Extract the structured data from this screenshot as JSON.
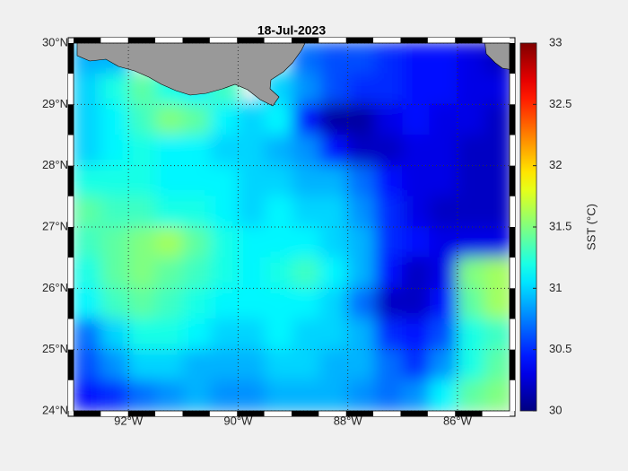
{
  "chart_data": {
    "type": "map",
    "title": "18-Jul-2023",
    "xlim": [
      -93,
      -85.05
    ],
    "ylim": [
      24,
      30
    ],
    "xticks": [
      {
        "value": -92,
        "label": "92°W"
      },
      {
        "value": -90,
        "label": "90°W"
      },
      {
        "value": -88,
        "label": "88°W"
      },
      {
        "value": -86,
        "label": "86°W"
      }
    ],
    "yticks": [
      {
        "value": 24,
        "label": "24°N"
      },
      {
        "value": 25,
        "label": "25°N"
      },
      {
        "value": 26,
        "label": "26°N"
      },
      {
        "value": 27,
        "label": "27°N"
      },
      {
        "value": 28,
        "label": "28°N"
      },
      {
        "value": 29,
        "label": "29°N"
      },
      {
        "value": 30,
        "label": "30°N"
      }
    ],
    "grid": true,
    "colormap": "jet",
    "land_color": "#999999",
    "colorbar": {
      "label": "SST (°C)",
      "clim": [
        30,
        33
      ],
      "ticks": [
        30,
        30.5,
        31,
        31.5,
        32,
        32.5,
        33
      ]
    },
    "x": [
      -92.75,
      -92.25,
      -91.75,
      -91.25,
      -90.75,
      -90.25,
      -89.75,
      -89.25,
      -88.75,
      -88.25,
      -87.75,
      -87.25,
      -86.75,
      -86.25,
      -85.75,
      -85.25
    ],
    "y": [
      29.75,
      29.25,
      28.75,
      28.25,
      27.75,
      27.25,
      26.75,
      26.25,
      25.75,
      25.25,
      24.75,
      24.25
    ],
    "values": [
      [
        30.9,
        30.9,
        null,
        null,
        null,
        null,
        null,
        null,
        30.7,
        30.6,
        30.6,
        30.5,
        30.4,
        30.4,
        30.3,
        30.2
      ],
      [
        31.0,
        31.2,
        31.4,
        31.2,
        31.1,
        31.3,
        null,
        31.0,
        30.8,
        30.6,
        30.5,
        30.5,
        30.4,
        30.4,
        30.3,
        30.3
      ],
      [
        31.0,
        31.1,
        31.3,
        31.5,
        31.4,
        31.1,
        31.0,
        31.1,
        30.4,
        30.1,
        30.1,
        30.3,
        30.4,
        30.3,
        30.3,
        30.2
      ],
      [
        31.0,
        31.1,
        31.2,
        31.1,
        31.1,
        31.0,
        31.0,
        30.9,
        30.8,
        30.4,
        30.2,
        30.2,
        30.3,
        30.3,
        30.2,
        30.2
      ],
      [
        31.2,
        31.2,
        31.2,
        31.1,
        31.1,
        31.1,
        31.0,
        31.0,
        30.9,
        30.9,
        30.7,
        30.4,
        30.3,
        30.3,
        30.2,
        30.2
      ],
      [
        31.4,
        31.3,
        31.3,
        31.2,
        31.2,
        31.1,
        31.0,
        31.1,
        31.0,
        31.0,
        30.8,
        30.5,
        30.3,
        30.2,
        30.2,
        30.2
      ],
      [
        31.3,
        31.4,
        31.5,
        31.6,
        31.4,
        31.2,
        31.1,
        31.1,
        31.1,
        31.0,
        30.9,
        30.5,
        30.4,
        30.3,
        30.3,
        30.3
      ],
      [
        31.2,
        31.4,
        31.5,
        31.4,
        31.3,
        31.2,
        31.1,
        31.2,
        31.3,
        31.1,
        30.9,
        30.4,
        30.2,
        30.3,
        31.5,
        31.6
      ],
      [
        31.1,
        31.3,
        31.4,
        31.3,
        31.2,
        31.1,
        31.1,
        31.1,
        31.1,
        31.0,
        30.7,
        30.2,
        30.2,
        30.4,
        31.4,
        31.6
      ],
      [
        30.7,
        31.0,
        31.2,
        31.2,
        31.1,
        31.0,
        31.0,
        31.1,
        31.0,
        31.0,
        30.9,
        30.5,
        30.4,
        30.6,
        31.2,
        31.3
      ],
      [
        30.6,
        30.8,
        31.0,
        31.0,
        30.9,
        30.9,
        30.9,
        31.0,
        31.0,
        30.9,
        30.9,
        30.7,
        30.5,
        30.8,
        31.2,
        31.4
      ],
      [
        30.4,
        30.5,
        30.7,
        30.8,
        30.9,
        30.8,
        30.8,
        30.9,
        30.9,
        30.9,
        30.8,
        30.7,
        30.8,
        31.1,
        31.4,
        31.5
      ]
    ]
  }
}
